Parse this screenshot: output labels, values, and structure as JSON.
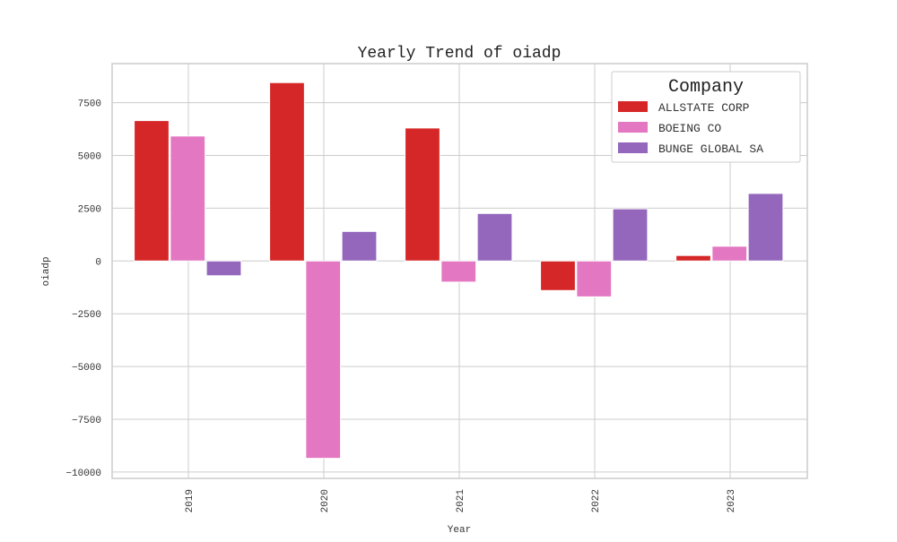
{
  "chart_data": {
    "type": "bar",
    "title": "Yearly Trend of oiadp",
    "xlabel": "Year",
    "ylabel": "oiadp",
    "categories": [
      "2019",
      "2020",
      "2021",
      "2022",
      "2023"
    ],
    "series": [
      {
        "name": "ALLSTATE CORP",
        "color": "#d62728",
        "values": [
          6650,
          8450,
          6300,
          -1400,
          260
        ]
      },
      {
        "name": "BOEING CO",
        "color": "#e377c2",
        "values": [
          5920,
          -9350,
          -1000,
          -1700,
          700
        ]
      },
      {
        "name": "BUNGE GLOBAL SA",
        "color": "#9467bd",
        "values": [
          -700,
          1400,
          2250,
          2470,
          3200
        ]
      }
    ],
    "ylim": [
      -10300,
      9350
    ],
    "yticks": [
      -10000,
      -7500,
      -5000,
      -2500,
      0,
      2500,
      5000,
      7500
    ],
    "ytick_labels": [
      "−10000",
      "−7500",
      "−5000",
      "−2500",
      "0",
      "2500",
      "5000",
      "7500"
    ],
    "legend": {
      "title": "Company",
      "placement": "top-right"
    },
    "grid": true
  }
}
